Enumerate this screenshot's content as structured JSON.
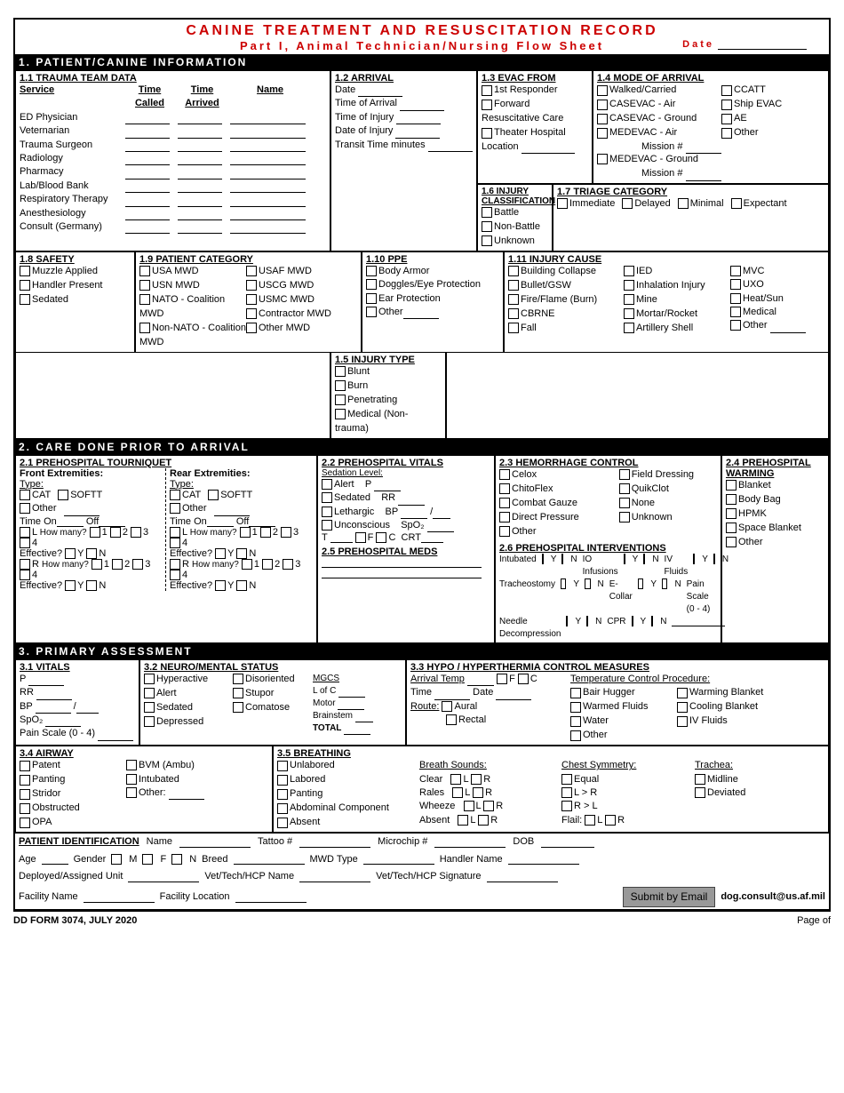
{
  "header": {
    "title_main": "CANINE TREATMENT AND RESUSCITATION  RECORD",
    "title_sub": "Part I, Animal Technician/Nursing Flow Sheet",
    "date_label": "Date"
  },
  "s1": {
    "header": "1.  PATIENT/CANINE INFORMATION",
    "b11": {
      "title": "1.1 TRAUMA TEAM DATA",
      "col_time_called": "Time Called",
      "col_time_arrived": "Time Arrived",
      "col_name": "Name",
      "col_service": "Service",
      "rows": [
        "ED Physician",
        "Veternarian",
        "Trauma Surgeon",
        "Radiology",
        "Pharmacy",
        "Lab/Blood Bank",
        "Respiratory Therapy",
        "Anesthesiology",
        "Consult (Germany)"
      ]
    },
    "b12": {
      "title": "1.2 ARRIVAL",
      "rows": [
        "Date",
        "Time of Arrival",
        "Time of Injury",
        "Date of Injury",
        "Transit Time minutes"
      ]
    },
    "b13": {
      "title": "1.3 EVAC FROM",
      "items": [
        "1st Responder",
        "Forward Resuscitative Care",
        "Theater Hospital"
      ],
      "location": "Location"
    },
    "b14": {
      "title": "1.4 MODE OF ARRIVAL",
      "col1": [
        "Walked/Carried",
        "CASEVAC -  Air",
        "CASEVAC - Ground",
        "MEDEVAC - Air"
      ],
      "mission1": "Mission #",
      "medevac_ground": "MEDEVAC - Ground",
      "mission2": "Mission #",
      "col2": [
        "CCATT",
        "Ship EVAC",
        "AE",
        "Other"
      ]
    },
    "b15": {
      "title": "1.5 INJURY TYPE",
      "items": [
        "Blunt",
        "Burn",
        "Penetrating",
        "Medical (Non-trauma)"
      ]
    },
    "b16": {
      "title": "1.6 INJURY CLASSIFICATION",
      "items": [
        "Battle",
        "Non-Battle",
        "Unknown"
      ]
    },
    "b17": {
      "title": "1.7 TRIAGE CATEGORY",
      "items": [
        "Immediate",
        "Delayed",
        "Minimal",
        "Expectant"
      ]
    },
    "b18": {
      "title": "1.8 SAFETY",
      "items": [
        "Muzzle Applied",
        "Handler Present",
        "Sedated"
      ]
    },
    "b19": {
      "title": "1.9 PATIENT CATEGORY",
      "col1": [
        "USA MWD",
        "USN MWD",
        "NATO - Coalition MWD",
        "Non-NATO - Coalition MWD"
      ],
      "col2": [
        "USAF MWD",
        "USCG MWD",
        "USMC MWD",
        "Contractor MWD",
        "Other MWD"
      ]
    },
    "b110": {
      "title": "1.10 PPE",
      "items": [
        "Body Armor",
        "Doggles/Eye Protection",
        "Ear Protection",
        "Other"
      ]
    },
    "b111": {
      "title": "1.11 INJURY CAUSE",
      "col1": [
        "Building Collapse",
        "Bullet/GSW",
        "Fire/Flame (Burn)",
        "CBRNE",
        "Fall"
      ],
      "col2": [
        "IED",
        "Inhalation Injury",
        "Mine",
        "Mortar/Rocket",
        "Artillery Shell"
      ],
      "col3": [
        "MVC",
        "UXO",
        "Heat/Sun",
        "Medical",
        "Other"
      ]
    }
  },
  "s2": {
    "header": "2.  CARE DONE PRIOR TO ARRIVAL",
    "b21": {
      "title": "2.1 PREHOSPITAL TOURNIQUET",
      "front": "Front Extremities:",
      "rear": "Rear Extremities:",
      "type": "Type:",
      "cat": "CAT",
      "softt": "SOFTT",
      "other": "Other",
      "time_on": "Time On",
      "off": "Off",
      "L": "L",
      "R": "R",
      "how_many": "How many?",
      "nums": [
        "1",
        "2",
        "3",
        "4"
      ],
      "effective": "Effective?",
      "Y": "Y",
      "N": "N"
    },
    "b22": {
      "title": "2.2 PREHOSPITAL VITALS",
      "sed": "Sedation Level:",
      "levels": [
        "Alert",
        "Sedated",
        "Lethargic",
        "Unconscious"
      ],
      "P": "P",
      "RR": "RR",
      "BP": "BP",
      "SpO2": "SpO₂",
      "T": "T",
      "F": "F",
      "C": "C",
      "CRT": "CRT"
    },
    "b23": {
      "title": "2.3 HEMORRHAGE CONTROL",
      "col1": [
        "Celox",
        "ChitoFlex",
        "Combat Gauze",
        "Direct Pressure",
        "Other"
      ],
      "col2": [
        "Field Dressing",
        "QuikClot",
        "None",
        "Unknown"
      ]
    },
    "b24": {
      "title": "2.4 PREHOSPITAL WARMING",
      "items": [
        "Blanket",
        "Body Bag",
        "HPMK",
        "Space Blanket",
        "Other"
      ]
    },
    "b25": {
      "title": "2.5 PREHOSPITAL MEDS"
    },
    "b26": {
      "title": "2.6 PREHOSPITAL  INTERVENTIONS",
      "rows1": [
        "Intubated",
        "Tracheostomy",
        "Needle Decompression"
      ],
      "rows2": [
        "IO Infusions",
        "E-Collar",
        "CPR"
      ],
      "rows3": [
        "IV Fluids",
        "Pain Scale (0 - 4)"
      ],
      "Y": "Y",
      "N": "N"
    }
  },
  "s3": {
    "header": "3.  PRIMARY ASSESSMENT",
    "b31": {
      "title": "3.1 VITALS",
      "rows": [
        "P",
        "RR",
        "BP",
        "SpO₂",
        "Pain Scale (0 - 4)"
      ]
    },
    "b32": {
      "title": "3.2 NEURO/MENTAL STATUS",
      "col1": [
        "Hyperactive",
        "Alert",
        "Sedated",
        "Depressed"
      ],
      "col2": [
        "Disoriented",
        "Stupor",
        "Comatose"
      ],
      "mgcs": "MGCS",
      "lofc": "L of C",
      "motor": "Motor",
      "brainstem": "Brainstem",
      "total": "TOTAL"
    },
    "b33": {
      "title": "3.3 HYPO / HYPERTHERMIA CONTROL MEASURES",
      "arrival": "Arrival Temp",
      "F": "F",
      "C": "C",
      "time": "Time",
      "date": "Date",
      "route": "Route:",
      "aural": "Aural",
      "rectal": "Rectal",
      "proc": "Temperature Control Procedure:",
      "col1": [
        "Bair Hugger",
        "Warmed Fluids",
        "Water",
        "Other"
      ],
      "col2": [
        "Warming Blanket",
        "Cooling Blanket",
        "IV Fluids"
      ]
    },
    "b34": {
      "title": "3.4 AIRWAY",
      "col1": [
        "Patent",
        "Panting",
        "Stridor",
        "Obstructed",
        "OPA"
      ],
      "col2": [
        "BVM (Ambu)",
        "Intubated",
        "Other:"
      ]
    },
    "b35": {
      "title": "3.5 BREATHING",
      "items": [
        "Unlabored",
        "Labored",
        "Panting",
        "Abdominal Component",
        "Absent"
      ],
      "breath": "Breath Sounds:",
      "clear": "Clear",
      "rales": "Rales",
      "wheeze": "Wheeze",
      "absent": "Absent",
      "L": "L",
      "R": "R",
      "chest": "Chest Symmetry:",
      "equal": "Equal",
      "lgr": "L > R",
      "rgl": "R > L",
      "flail": "Flail:",
      "trachea": "Trachea:",
      "midline": "Midline",
      "deviated": "Deviated"
    }
  },
  "pid": {
    "title": "PATIENT IDENTIFICATION",
    "name": "Name",
    "tattoo": "Tattoo #",
    "microchip": "Microchip #",
    "dob": "DOB",
    "age": "Age",
    "gender": "Gender",
    "M": "M",
    "F": "F",
    "N": "N",
    "breed": "Breed",
    "mwd": "MWD Type",
    "handler": "Handler Name",
    "unit": "Deployed/Assigned Unit",
    "vetname": "Vet/Tech/HCP Name",
    "vetsig": "Vet/Tech/HCP Signature",
    "facility": "Facility Name",
    "location": "Facility Location",
    "submit": "Submit by Email",
    "email": "dog.consult@us.af.mil"
  },
  "footer": {
    "form": "DD FORM 3074, JULY 2020",
    "page": "Page  of"
  }
}
